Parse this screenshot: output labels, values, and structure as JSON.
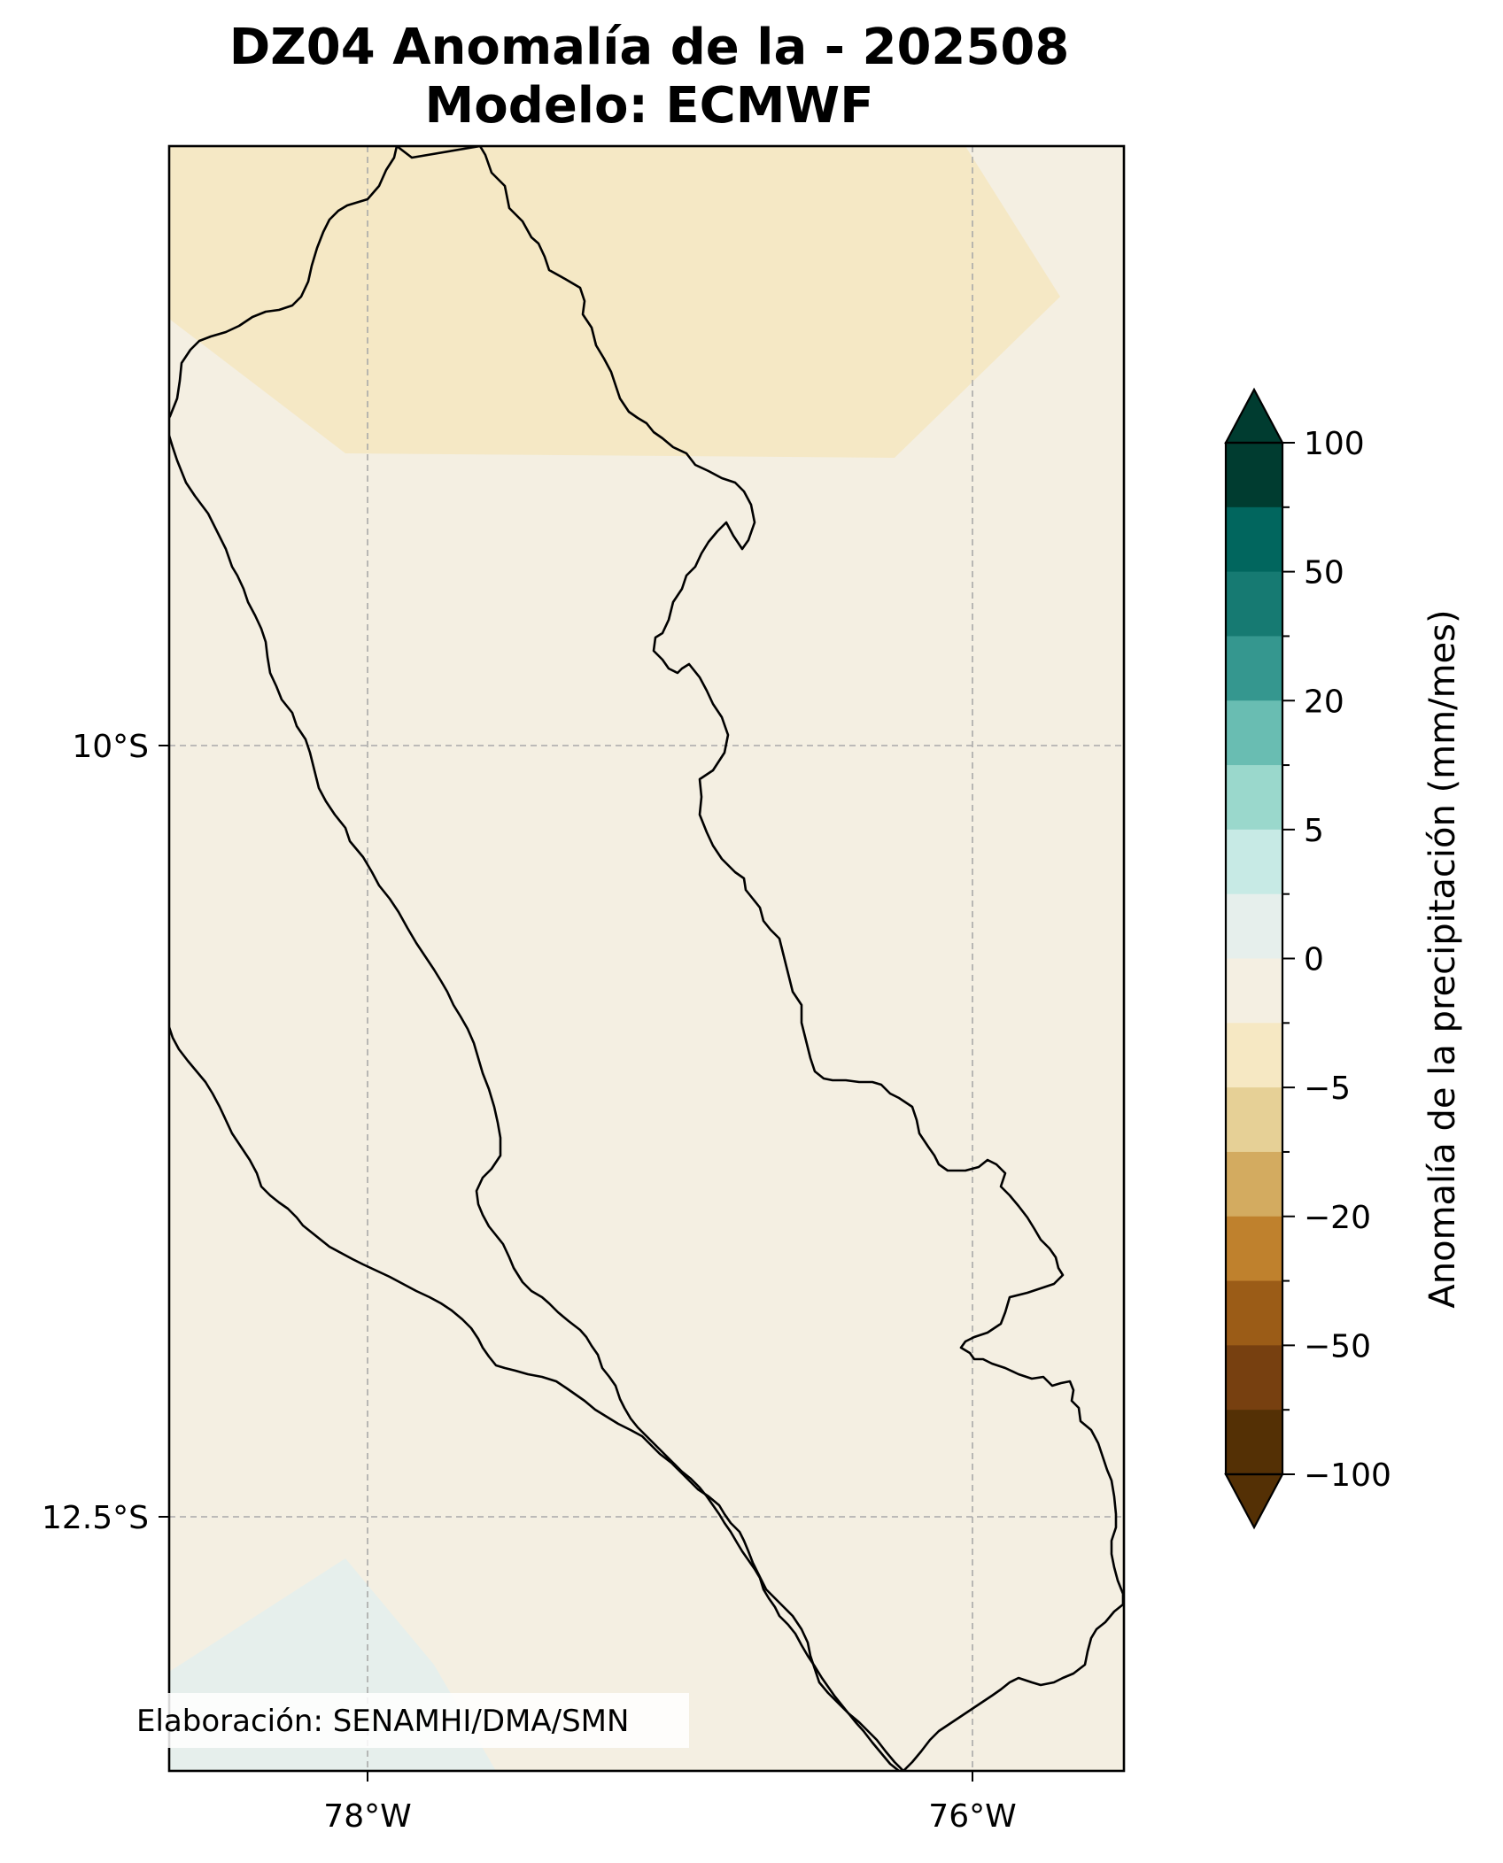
{
  "title": {
    "line1": "DZ04 Anomalía de la - 202508",
    "line2": "Modelo: ECMWF"
  },
  "map": {
    "longitude_ticks": [
      "78°W",
      "76°W"
    ],
    "latitude_ticks": [
      "10°S",
      "12.5°S"
    ],
    "gridlines": "dashed",
    "credit": "Elaboración: SENAMHI/DMA/SMN",
    "colors": {
      "background_0_to_neg5": "#f4efe2",
      "anomaly_neg5_band": "#f5e8c5",
      "anomaly_pos0_band": "#e6efec"
    }
  },
  "colorbar": {
    "label": "Anomalía de la precipitación (mm/mes)",
    "tick_labels": [
      "100",
      "50",
      "20",
      "5",
      "0",
      "−5",
      "−20",
      "−50",
      "−100"
    ],
    "extend": "both",
    "colors_top_to_bottom": [
      "#003c30",
      "#01665e",
      "#167a72",
      "#35978f",
      "#69bdb2",
      "#9ad8cc",
      "#c7eae5",
      "#e6efec",
      "#f4efe2",
      "#f6e8c3",
      "#e6d096",
      "#d3ab60",
      "#bf812d",
      "#9b5c17",
      "#774010",
      "#543005"
    ],
    "arrow_top_color": "#003c30",
    "arrow_bottom_color": "#543005"
  }
}
